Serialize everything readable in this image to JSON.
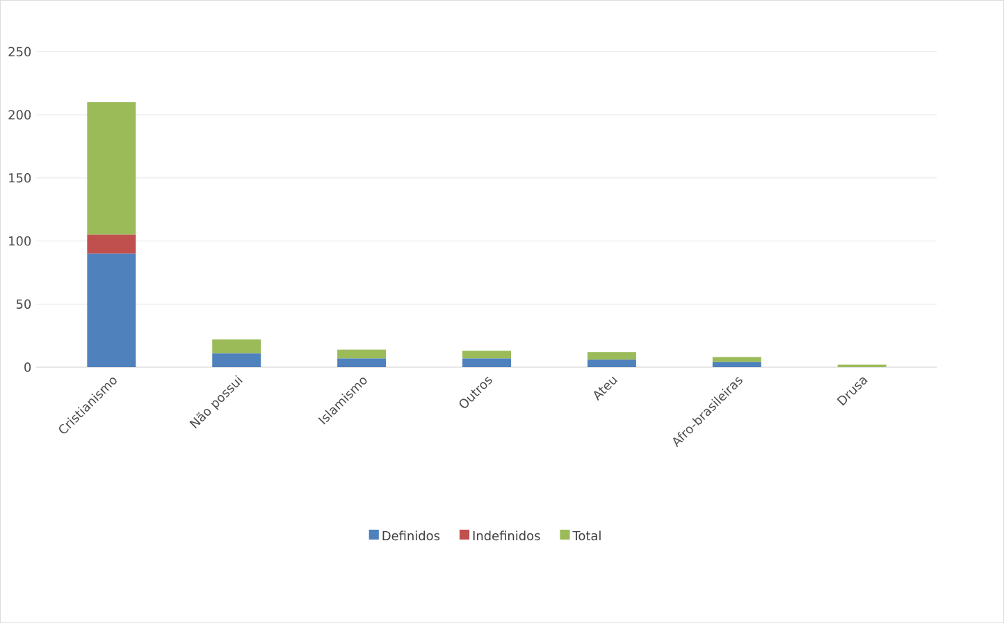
{
  "chart_data": {
    "type": "bar",
    "stacked": true,
    "categories": [
      "Cristianismo",
      "Não possui",
      "Islamismo",
      "Outros",
      "Ateu",
      "Afro-brasileiras",
      "Drusa"
    ],
    "series": [
      {
        "name": "Definidos",
        "color": "#4f81bd",
        "values": [
          90,
          11,
          7,
          7,
          6,
          4,
          0
        ]
      },
      {
        "name": "Indefinidos",
        "color": "#c0504d",
        "values": [
          15,
          0,
          0,
          0,
          0,
          0,
          0
        ]
      },
      {
        "name": "Total",
        "color": "#9bbb59",
        "values": [
          105,
          11,
          7,
          6,
          6,
          4,
          2
        ]
      }
    ],
    "ylim": [
      0,
      250
    ],
    "yticks": [
      0,
      50,
      100,
      150,
      200,
      250
    ],
    "grid": "y",
    "legend": "bottom"
  }
}
